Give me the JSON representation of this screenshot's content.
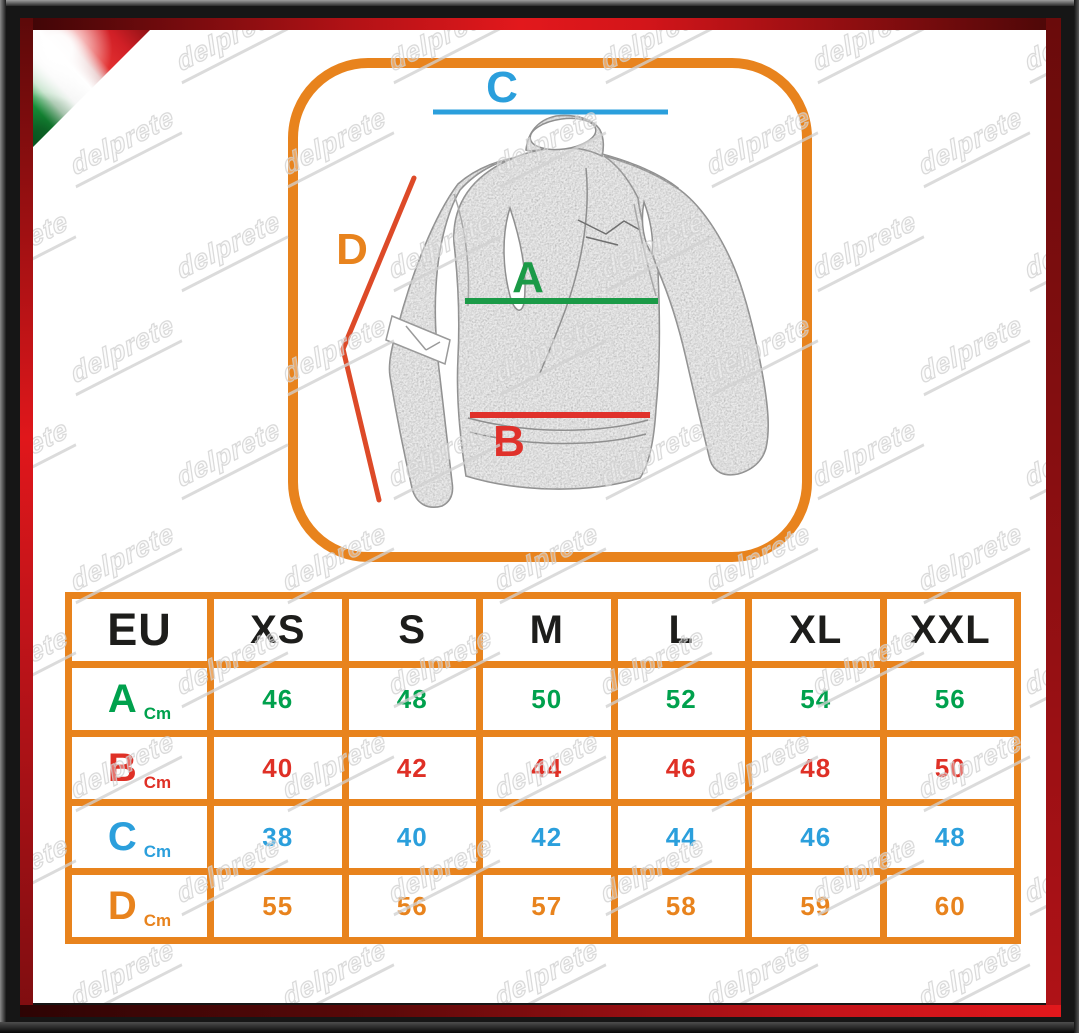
{
  "watermark": {
    "text": "delprete"
  },
  "flag": {
    "name": "italian-flag-ribbon"
  },
  "colors": {
    "frame_red": "#E2181C",
    "table_orange": "#E8831D",
    "marker_green_line": "#1B9A47",
    "marker_red_line": "#E0312B",
    "marker_blue_line": "#2B9FDC",
    "marker_d_line": "#DD4A28"
  },
  "diagram": {
    "markers": {
      "A": {
        "letter": "A",
        "color": "#1B9A47"
      },
      "B": {
        "letter": "B",
        "color": "#E0312B"
      },
      "C": {
        "letter": "C",
        "color": "#2B9FDC"
      },
      "D": {
        "letter": "D",
        "color": "#E8831D",
        "line_color": "#DD4A28"
      }
    }
  },
  "size_table": {
    "header": [
      "EU",
      "XS",
      "S",
      "M",
      "L",
      "XL",
      "XXL"
    ],
    "rows": [
      {
        "label": "A",
        "unit": "Cm",
        "color": "#00A14D",
        "values": [
          "46",
          "48",
          "50",
          "52",
          "54",
          "56"
        ]
      },
      {
        "label": "B",
        "unit": "Cm",
        "color": "#DF3026",
        "values": [
          "40",
          "42",
          "44",
          "46",
          "48",
          "50"
        ]
      },
      {
        "label": "C",
        "unit": "Cm",
        "color": "#2B9FDC",
        "values": [
          "38",
          "40",
          "42",
          "44",
          "46",
          "48"
        ]
      },
      {
        "label": "D",
        "unit": "Cm",
        "color": "#E8831D",
        "values": [
          "55",
          "56",
          "57",
          "58",
          "59",
          "60"
        ]
      }
    ]
  }
}
